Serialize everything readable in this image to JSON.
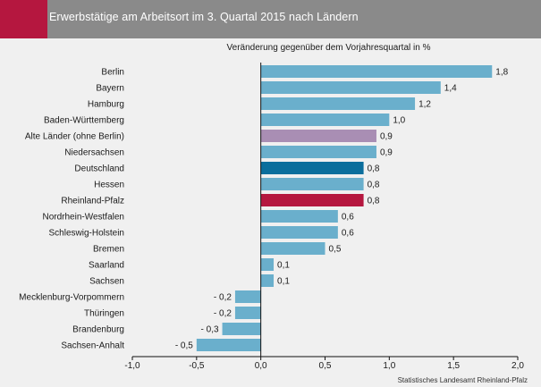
{
  "header": {
    "title": "Erwerbstätige am Arbeitsort im 3. Quartal 2015 nach Ländern",
    "accent_color": "#b5173f",
    "bar_color": "#8a8a8a"
  },
  "source": "Statistisches Landesamt Rheinland-Pfalz",
  "chart_data": {
    "type": "bar",
    "orientation": "horizontal",
    "subtitle": "Veränderung gegenüber dem Vorjahresquartal in %",
    "categories": [
      "Berlin",
      "Bayern",
      "Hamburg",
      "Baden-Württemberg",
      "Alte Länder (ohne Berlin)",
      "Niedersachsen",
      "Deutschland",
      "Hessen",
      "Rheinland-Pfalz",
      "Nordrhein-Westfalen",
      "Schleswig-Holstein",
      "Bremen",
      "Saarland",
      "Sachsen",
      "Mecklenburg-Vorpommern",
      "Thüringen",
      "Brandenburg",
      "Sachsen-Anhalt"
    ],
    "values": [
      1.8,
      1.4,
      1.2,
      1.0,
      0.9,
      0.9,
      0.8,
      0.8,
      0.8,
      0.6,
      0.6,
      0.5,
      0.1,
      0.1,
      -0.2,
      -0.2,
      -0.3,
      -0.5
    ],
    "value_labels": [
      "1,8",
      "1,4",
      "1,2",
      "1,0",
      "0,9",
      "0,9",
      "0,8",
      "0,8",
      "0,8",
      "0,6",
      "0,6",
      "0,5",
      "0,1",
      "0,1",
      "- 0,2",
      "- 0,2",
      "- 0,3",
      "- 0,5"
    ],
    "colors": [
      "#6aafcc",
      "#6aafcc",
      "#6aafcc",
      "#6aafcc",
      "#a98eb4",
      "#6aafcc",
      "#0b6e9c",
      "#6aafcc",
      "#b5173f",
      "#6aafcc",
      "#6aafcc",
      "#6aafcc",
      "#6aafcc",
      "#6aafcc",
      "#6aafcc",
      "#6aafcc",
      "#6aafcc",
      "#6aafcc"
    ],
    "xlim": [
      -1.0,
      2.0
    ],
    "xticks": [
      -1.0,
      -0.5,
      0.0,
      0.5,
      1.0,
      1.5,
      2.0
    ],
    "xtick_labels": [
      "-1,0",
      "-0,5",
      "0,0",
      "0,5",
      "1,0",
      "1,5",
      "2,0"
    ],
    "grid": false
  }
}
